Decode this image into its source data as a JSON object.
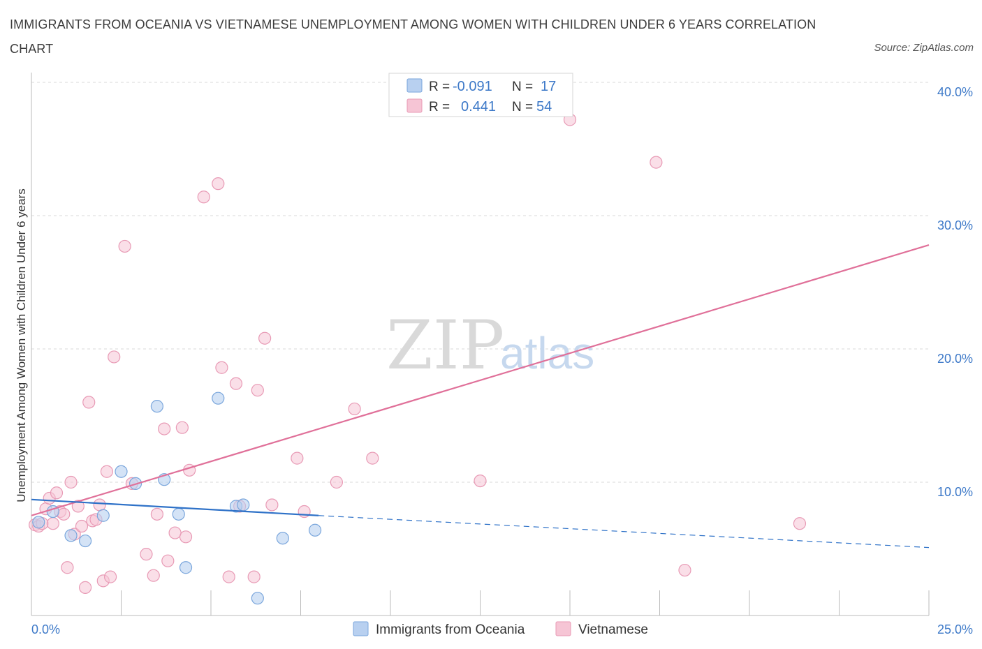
{
  "title": "IMMIGRANTS FROM OCEANIA VS VIETNAMESE UNEMPLOYMENT AMONG WOMEN WITH CHILDREN UNDER 6 YEARS CORRELATION CHART",
  "source": "Source: ZipAtlas.com",
  "watermark": {
    "zip": "ZIP",
    "atlas": "atlas"
  },
  "colors": {
    "oceania_fill": "#b8d0f0",
    "oceania_stroke": "#7aa6dc",
    "oceania_line": "#2f72c8",
    "viet_fill": "#f6c5d5",
    "viet_stroke": "#e89ab5",
    "viet_line": "#e07099",
    "grid": "#d9d9d9",
    "axis_text": "#3d79c8"
  },
  "legend": {
    "r_label": "R =",
    "n_label": "N =",
    "oceania": {
      "r": "-0.091",
      "n": "17"
    },
    "vietnamese": {
      "r": "0.441",
      "n": "54"
    }
  },
  "chart_data": {
    "type": "scatter",
    "title": "IMMIGRANTS FROM OCEANIA VS VIETNAMESE UNEMPLOYMENT AMONG WOMEN WITH CHILDREN UNDER 6 YEARS CORRELATION CHART",
    "xlabel": "",
    "ylabel": "Unemployment Among Women with Children Under 6 years",
    "xlim": [
      0,
      25
    ],
    "ylim": [
      0,
      40
    ],
    "x_tick_labels": [
      "0.0%",
      "25.0%"
    ],
    "y_ticks": [
      10,
      20,
      30,
      40
    ],
    "y_tick_labels": [
      "10.0%",
      "20.0%",
      "30.0%",
      "40.0%"
    ],
    "grid": true,
    "legend_position": "top-center",
    "series": [
      {
        "name": "Immigrants from Oceania",
        "r": -0.091,
        "n": 17,
        "x": [
          0.2,
          0.6,
          1.1,
          1.5,
          2.0,
          2.5,
          2.9,
          3.5,
          3.7,
          4.1,
          4.3,
          5.2,
          5.7,
          5.9,
          6.3,
          7.0,
          7.9
        ],
        "y": [
          7.0,
          7.8,
          6.0,
          5.6,
          7.5,
          10.8,
          9.9,
          15.7,
          10.2,
          7.6,
          3.6,
          16.3,
          8.2,
          8.3,
          1.3,
          5.8,
          6.4
        ],
        "trend": {
          "x": [
            0,
            8,
            25
          ],
          "y": [
            8.7,
            7.5,
            5.1
          ],
          "solid_until": 8
        }
      },
      {
        "name": "Vietnamese",
        "r": 0.441,
        "n": 54,
        "x": [
          0.1,
          0.2,
          0.3,
          0.4,
          0.5,
          0.6,
          0.7,
          0.8,
          0.9,
          1.0,
          1.1,
          1.2,
          1.3,
          1.4,
          1.5,
          1.6,
          1.7,
          1.8,
          1.9,
          2.0,
          2.1,
          2.2,
          2.3,
          2.6,
          2.8,
          3.2,
          3.4,
          3.5,
          3.7,
          3.8,
          4.0,
          4.2,
          4.3,
          4.4,
          4.8,
          5.2,
          5.3,
          5.5,
          5.7,
          5.8,
          6.2,
          6.3,
          6.5,
          6.7,
          7.4,
          7.6,
          8.5,
          9.0,
          9.5,
          12.5,
          15.0,
          17.4,
          18.2,
          21.4
        ],
        "y": [
          6.8,
          6.7,
          6.9,
          8.0,
          8.8,
          6.9,
          9.2,
          7.8,
          7.6,
          3.6,
          10.0,
          6.1,
          8.2,
          6.7,
          2.1,
          16.0,
          7.1,
          7.2,
          8.3,
          2.6,
          10.8,
          2.9,
          19.4,
          27.7,
          9.9,
          4.6,
          3.0,
          7.6,
          14.0,
          4.1,
          6.2,
          14.1,
          5.9,
          10.9,
          31.4,
          32.4,
          18.6,
          2.9,
          17.4,
          8.2,
          2.9,
          16.9,
          20.8,
          8.3,
          11.8,
          7.8,
          10.0,
          15.5,
          11.8,
          10.1,
          37.2,
          34.0,
          3.4,
          6.9
        ],
        "trend": {
          "x": [
            0,
            25
          ],
          "y": [
            7.5,
            27.8
          ]
        }
      }
    ]
  },
  "bottom_legend": [
    "Immigrants from Oceania",
    "Vietnamese"
  ]
}
